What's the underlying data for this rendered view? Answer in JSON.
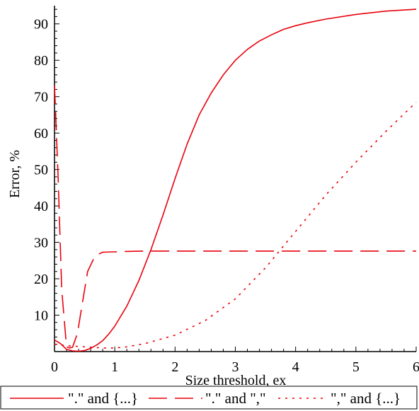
{
  "chart_data": {
    "type": "line",
    "xlabel": "Size threshold, ex",
    "ylabel": "Error, %",
    "xlim": [
      0,
      6
    ],
    "ylim": [
      0,
      95
    ],
    "xticks": [
      0,
      1,
      2,
      3,
      4,
      5,
      6
    ],
    "yticks": [
      10,
      20,
      30,
      40,
      50,
      60,
      70,
      80,
      90
    ],
    "grid": false,
    "legend_position": "bottom",
    "series": [
      {
        "name": "\".\" and {...}",
        "color": "#e8000b",
        "dash": "solid",
        "x": [
          0,
          0.1,
          0.2,
          0.3,
          0.4,
          0.5,
          0.6,
          0.7,
          0.8,
          0.9,
          1.0,
          1.2,
          1.4,
          1.6,
          1.8,
          2.0,
          2.2,
          2.4,
          2.6,
          2.8,
          3.0,
          3.2,
          3.4,
          3.6,
          3.8,
          4.0,
          4.2,
          4.5,
          5.0,
          5.5,
          6.0
        ],
        "y": [
          3.2,
          2.2,
          0.6,
          0.2,
          0.1,
          0.3,
          0.9,
          1.8,
          3.0,
          4.8,
          7.0,
          12.5,
          19.5,
          28.0,
          37.5,
          47.5,
          57.0,
          65.0,
          71.0,
          76.0,
          80.0,
          83.0,
          85.3,
          87.0,
          88.5,
          89.5,
          90.3,
          91.3,
          92.6,
          93.5,
          94.0
        ]
      },
      {
        "name": "\".\" and \",\"",
        "color": "#e8000b",
        "dash": "long-dash",
        "x": [
          0,
          0.02,
          0.06,
          0.12,
          0.2,
          0.25,
          0.3,
          0.38,
          0.45,
          0.55,
          0.65,
          0.7,
          0.8,
          1.0,
          1.2,
          1.5,
          2.0,
          3.0,
          4.0,
          5.0,
          6.0
        ],
        "y": [
          73,
          65,
          48,
          17,
          1.3,
          1.0,
          1.2,
          5.0,
          12.0,
          22.0,
          25.5,
          26.5,
          27.3,
          27.4,
          27.5,
          27.6,
          27.6,
          27.6,
          27.6,
          27.6,
          27.6
        ]
      },
      {
        "name": "\",\" and {...}",
        "color": "#e8000b",
        "dash": "dotted",
        "x": [
          0,
          0.3,
          0.5,
          0.8,
          1.0,
          1.2,
          1.5,
          2.0,
          2.5,
          3.0,
          3.5,
          4.0,
          4.5,
          5.0,
          5.5,
          6.0
        ],
        "y": [
          2.0,
          1.5,
          1.3,
          1.0,
          1.0,
          1.3,
          2.2,
          4.5,
          8.5,
          14.5,
          23.0,
          33.0,
          43.0,
          52.0,
          60.5,
          68.5
        ]
      }
    ]
  }
}
